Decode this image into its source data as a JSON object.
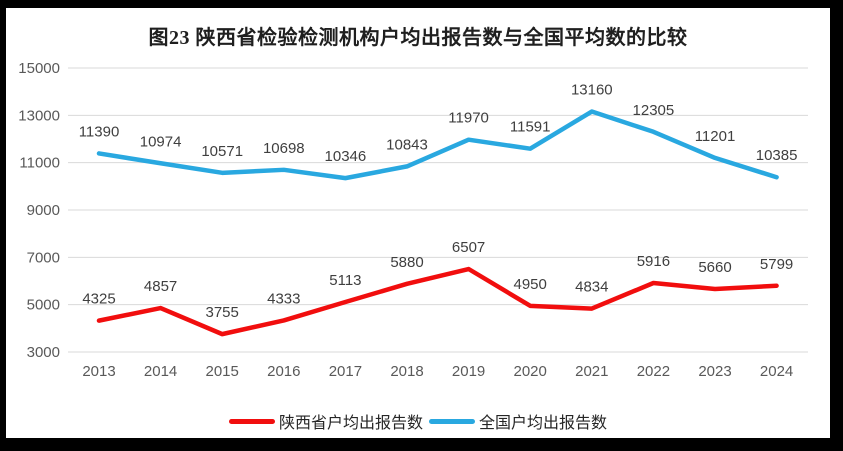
{
  "chart_data": {
    "type": "line",
    "title": "图23 陕西省检验检测机构户均出报告数与全国平均数的比较",
    "categories": [
      "2013",
      "2014",
      "2015",
      "2016",
      "2017",
      "2018",
      "2019",
      "2020",
      "2021",
      "2022",
      "2023",
      "2024"
    ],
    "series": [
      {
        "name": "陕西省户均出报告数",
        "color": "#F10E0E",
        "values": [
          4325,
          4857,
          3755,
          4333,
          5113,
          5880,
          6507,
          4950,
          4834,
          5916,
          5660,
          5799
        ]
      },
      {
        "name": "全国户均出报告数",
        "color": "#29A8E0",
        "values": [
          11390,
          10974,
          10571,
          10698,
          10346,
          10843,
          11970,
          11591,
          13160,
          12305,
          11201,
          10385
        ]
      }
    ],
    "ylim": [
      3000,
      15000
    ],
    "yticks": [
      3000,
      5000,
      7000,
      9000,
      11000,
      13000,
      15000
    ],
    "grid": true,
    "data_labels": true,
    "legend_position": "bottom"
  },
  "colors": {
    "frame": "#000000",
    "background": "#FFFFFF",
    "gridline": "#D9D9D9",
    "axis_text": "#595959",
    "data_label_text": "#3F3F3F"
  }
}
